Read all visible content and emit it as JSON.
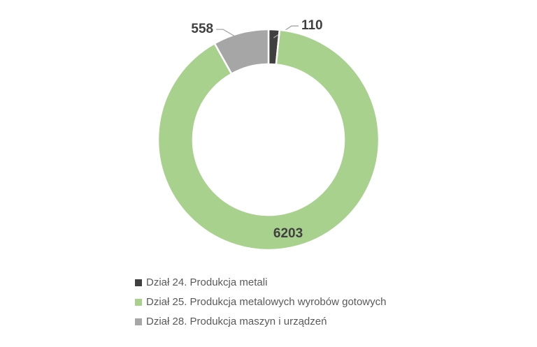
{
  "chart_data": {
    "type": "donut",
    "categories": [
      "Dział 24. Produkcja metali",
      "Dział 25. Produkcja metalowych wyrobów gotowych",
      "Dział 28. Produkcja maszyn i urządzeń"
    ],
    "values": [
      110,
      6203,
      558
    ],
    "colors": [
      "#404040",
      "#a9d18e",
      "#a6a6a6"
    ],
    "legend": "bottom"
  }
}
